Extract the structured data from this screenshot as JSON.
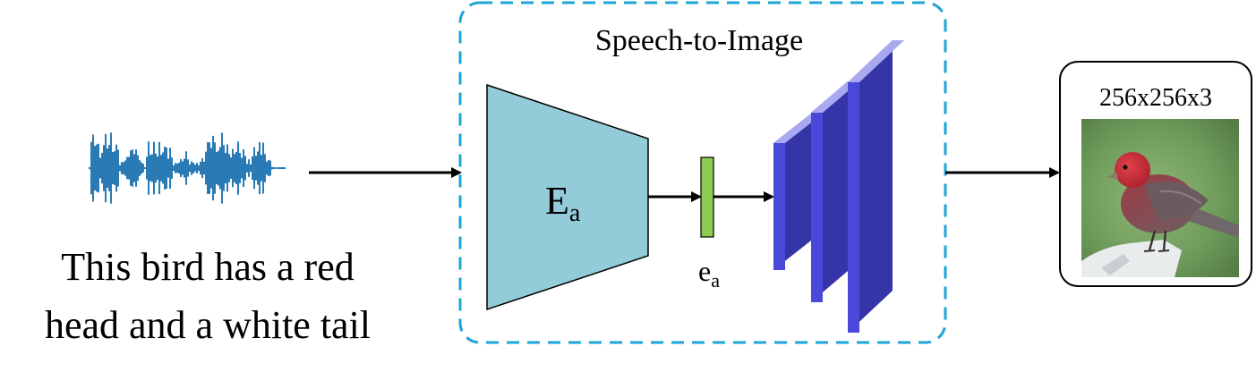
{
  "caption": {
    "line1": "This bird has a red",
    "line2": "head and a white tail"
  },
  "module": {
    "title": "Speech-to-Image",
    "encoder": {
      "symbol": "E",
      "subscript": "a"
    },
    "embedding": {
      "symbol": "e",
      "subscript": "a"
    }
  },
  "output": {
    "size_label": "256x256x3"
  },
  "colors": {
    "waveform": "#2a7bb5",
    "dashed_border": "#1ea4d8",
    "encoder_fill": "#94cbd9",
    "embedding_fill": "#8ccc4e",
    "decoder_front": "#4a48d8",
    "decoder_top": "#a9a9f2",
    "decoder_side": "#3535a8"
  },
  "icons": {
    "input": "speech-waveform-icon",
    "output": "red-bird-photo"
  }
}
